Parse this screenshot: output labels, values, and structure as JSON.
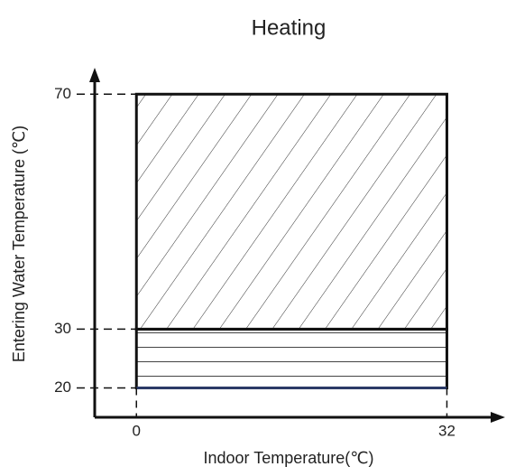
{
  "chart_data": {
    "type": "range",
    "title": "Heating",
    "xlabel": "Indoor Temperature(℃)",
    "ylabel": "Entering Water Temperature (℃)",
    "xlim": [
      -4.3,
      38
    ],
    "ylim": [
      15,
      74.5
    ],
    "xticks": [
      0,
      32
    ],
    "yticks": [
      20,
      30,
      70
    ],
    "edge_color": "#111111",
    "bottom_color": "#2b3a67",
    "regions": [
      {
        "x": [
          0,
          32
        ],
        "y": [
          30,
          70
        ],
        "pattern": "diagonal"
      },
      {
        "x": [
          0,
          32
        ],
        "y": [
          20,
          30
        ],
        "pattern": "horizontal"
      }
    ]
  }
}
